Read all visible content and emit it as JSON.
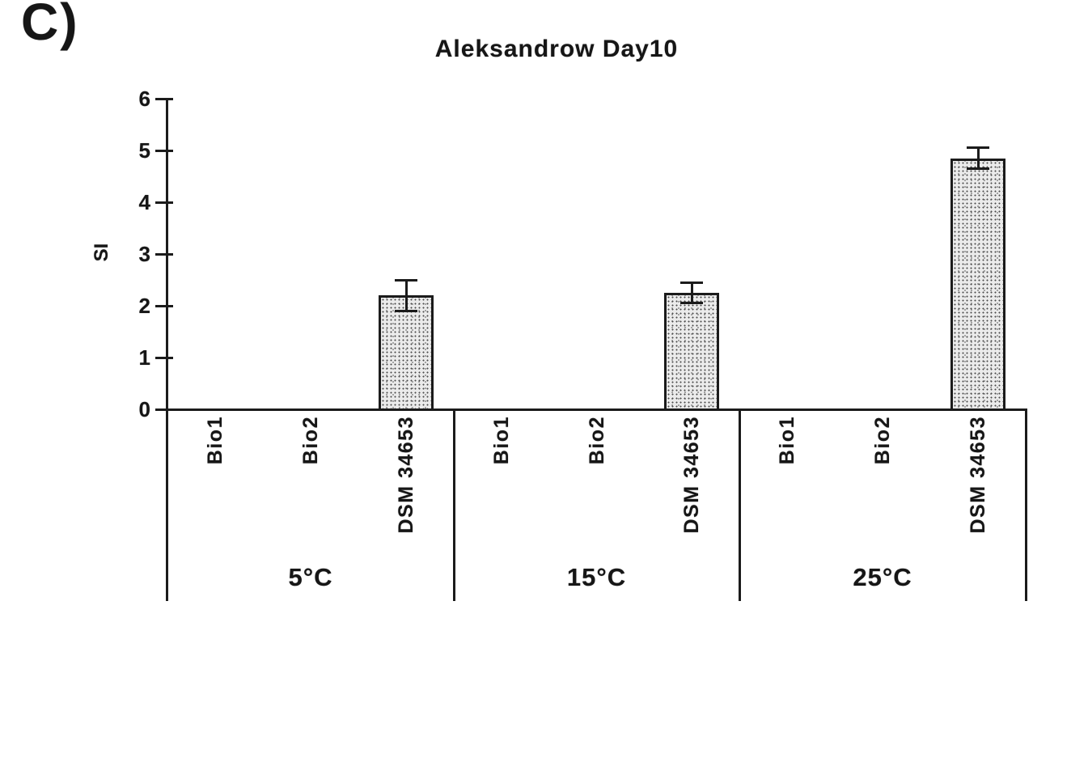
{
  "panel_label": "C)",
  "chart_data": {
    "type": "bar",
    "title": "Aleksandrow Day10",
    "xlabel": "",
    "ylabel": "SI",
    "ylim": [
      0,
      6
    ],
    "yticks": [
      0,
      1,
      2,
      3,
      4,
      5,
      6
    ],
    "grid": false,
    "legend": "none",
    "bar_fill": "stippled-gray",
    "bar_border_color": "#1b1b1b",
    "groups": [
      {
        "label": "5°C",
        "categories": [
          "Bio1",
          "Bio2",
          "DSM 34653"
        ],
        "values": [
          0,
          0,
          2.2
        ],
        "errors": [
          0,
          0,
          0.3
        ]
      },
      {
        "label": "15°C",
        "categories": [
          "Bio1",
          "Bio2",
          "DSM 34653"
        ],
        "values": [
          0,
          0,
          2.25
        ],
        "errors": [
          0,
          0,
          0.2
        ]
      },
      {
        "label": "25°C",
        "categories": [
          "Bio1",
          "Bio2",
          "DSM 34653"
        ],
        "values": [
          0,
          0,
          4.85
        ],
        "errors": [
          0,
          0,
          0.2
        ]
      }
    ]
  }
}
